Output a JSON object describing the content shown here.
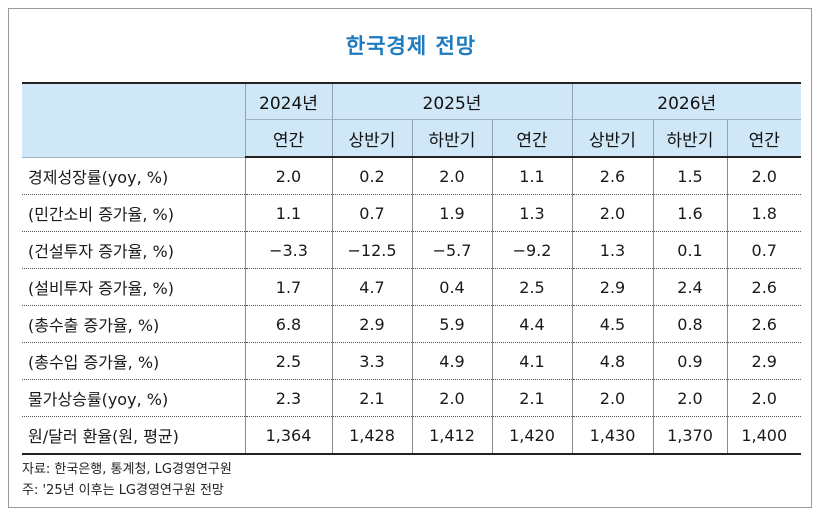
{
  "title": "한국경제 전망",
  "header": {
    "years": [
      "2024년",
      "2025년",
      "2026년"
    ],
    "periods": [
      "연간",
      "상반기",
      "하반기",
      "연간",
      "상반기",
      "하반기",
      "연간"
    ]
  },
  "rows": [
    {
      "label": "경제성장률(yoy, %)",
      "values": [
        "2.0",
        "0.2",
        "2.0",
        "1.1",
        "2.6",
        "1.5",
        "2.0"
      ]
    },
    {
      "label": " (민간소비 증가율, %)",
      "values": [
        "1.1",
        "0.7",
        "1.9",
        "1.3",
        "2.0",
        "1.6",
        "1.8"
      ]
    },
    {
      "label": " (건설투자 증가율, %)",
      "values": [
        "−3.3",
        "−12.5",
        "−5.7",
        "−9.2",
        "1.3",
        "0.1",
        "0.7"
      ]
    },
    {
      "label": " (설비투자 증가율, %)",
      "values": [
        "1.7",
        "4.7",
        "0.4",
        "2.5",
        "2.9",
        "2.4",
        "2.6"
      ]
    },
    {
      "label": " (총수출 증가율, %)",
      "values": [
        "6.8",
        "2.9",
        "5.9",
        "4.4",
        "4.5",
        "0.8",
        "2.6"
      ]
    },
    {
      "label": " (총수입 증가율, %)",
      "values": [
        "2.5",
        "3.3",
        "4.9",
        "4.1",
        "4.8",
        "0.9",
        "2.9"
      ]
    },
    {
      "label": "물가상승률(yoy, %)",
      "values": [
        "2.3",
        "2.1",
        "2.0",
        "2.1",
        "2.0",
        "2.0",
        "2.0"
      ]
    },
    {
      "label": "원/달러 환율(원, 평균)",
      "values": [
        "1,364",
        "1,428",
        "1,412",
        "1,420",
        "1,430",
        "1,370",
        "1,400"
      ]
    }
  ],
  "notes": {
    "source": "자료: 한국은행, 통계청, LG경영연구원",
    "note": "주: '25년 이후는 LG경영연구원 전망"
  }
}
